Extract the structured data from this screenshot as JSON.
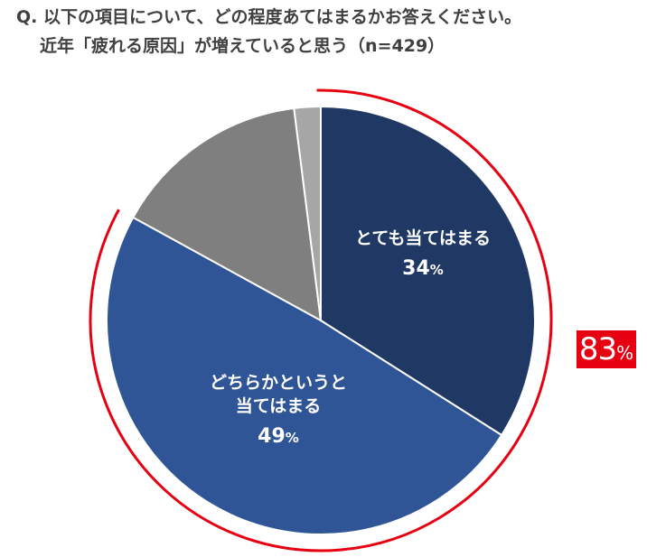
{
  "question": {
    "line1": "Q. 以下の項目について、どの程度あてはまるかお答えください。",
    "line2": "近年「疲れる原因」が増えていると思う（n=429）"
  },
  "chart_data": {
    "type": "pie",
    "title": "Q. 以下の項目について、どの程度あてはまるかお答えください。 近年「疲れる原因」が増えていると思う（n=429）",
    "start_angle_deg": 0,
    "direction": "clockwise",
    "slices": [
      {
        "label": "とても当てはまる",
        "value": 34,
        "color": "#1f3864",
        "show_label": true,
        "label_lines": [
          "とても当てはまる"
        ]
      },
      {
        "label": "どちらかというと当てはまる",
        "value": 49,
        "color": "#2f5597",
        "show_label": true,
        "label_lines": [
          "どちらかというと",
          "当てはまる"
        ]
      },
      {
        "label": "",
        "value": 15,
        "color": "#7f7f7f",
        "show_label": false,
        "label_lines": []
      },
      {
        "label": "",
        "value": 2,
        "color": "#a6a6a6",
        "show_label": false,
        "label_lines": []
      }
    ],
    "value_suffix": "%",
    "highlight": {
      "value": "83",
      "suffix": "%",
      "covers_slices": [
        0,
        1
      ],
      "color": "#e60012"
    }
  }
}
